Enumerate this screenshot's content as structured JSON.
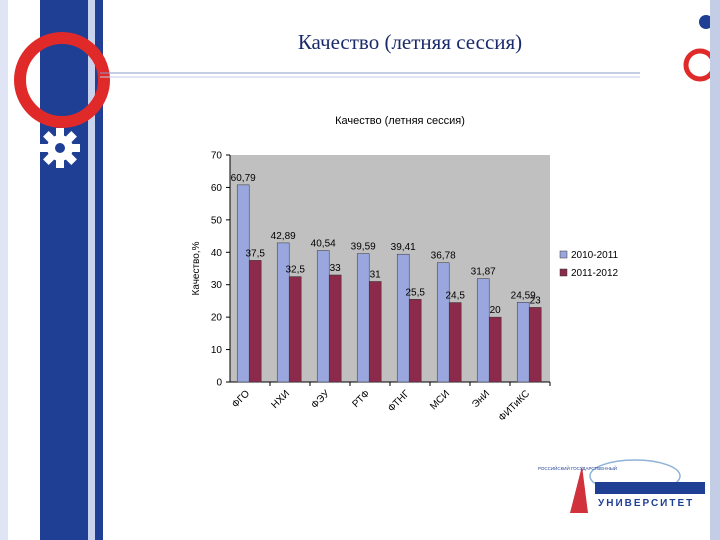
{
  "slide": {
    "title": "Качество (летняя сессия)"
  },
  "colors": {
    "sidebar_blue": "#1f3f95",
    "accent_red": "#e02a2a",
    "plot_bg": "#c0c0c0",
    "series1": "#9aa7de",
    "series2": "#8b2a4a"
  },
  "logo": {
    "top_text": "РОССИЙСКИЙ ГОСУДАРСТВЕННЫЙ",
    "main_text": "УНИВЕРСИТЕТ"
  },
  "chart_data": {
    "type": "bar",
    "title": "Качество (летняя сессия)",
    "xlabel": "",
    "ylabel": "Качество,%",
    "ylim": [
      0,
      70
    ],
    "yticks": [
      0,
      10,
      20,
      30,
      40,
      50,
      60,
      70
    ],
    "grid": false,
    "legend_position": "right",
    "categories": [
      "ФГО",
      "НХИ",
      "ФЭУ",
      "РТФ",
      "ФТНГ",
      "МСИ",
      "ЭнИ",
      "ФИТиКС"
    ],
    "series": [
      {
        "name": "2010-2011",
        "values": [
          60.79,
          42.89,
          40.54,
          39.59,
          39.41,
          36.78,
          31.87,
          24.59
        ],
        "labels": [
          "60,79",
          "42,89",
          "40,54",
          "39,59",
          "39,41",
          "36,78",
          "31,87",
          "24,59"
        ]
      },
      {
        "name": "2011-2012",
        "values": [
          37.5,
          32.5,
          33,
          31,
          25.5,
          24.5,
          20,
          23
        ],
        "labels": [
          "37,5",
          "32,5",
          "33",
          "31",
          "25,5",
          "24,5",
          "20",
          "23"
        ]
      }
    ]
  }
}
